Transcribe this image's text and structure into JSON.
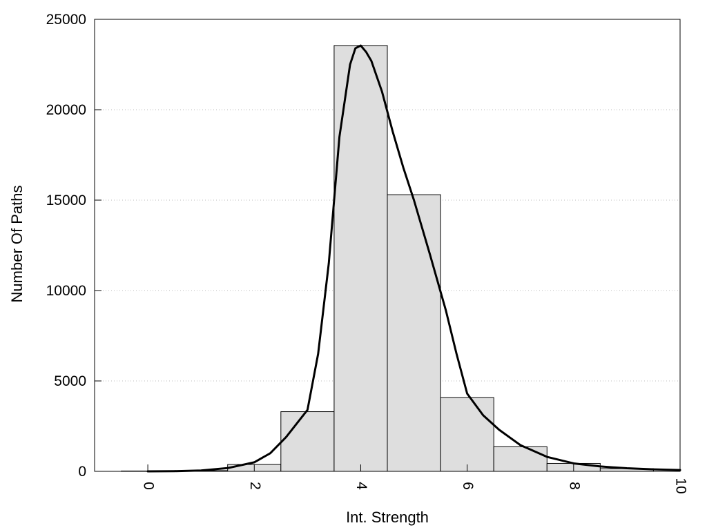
{
  "chart_data": {
    "type": "bar",
    "title": "",
    "xlabel": "Int. Strength",
    "ylabel": "Number Of Paths",
    "xlim": [
      -1,
      10
    ],
    "ylim": [
      0,
      25000
    ],
    "x_ticks": [
      0,
      2,
      4,
      6,
      8,
      10
    ],
    "y_ticks": [
      0,
      5000,
      10000,
      15000,
      20000,
      25000
    ],
    "grid": "horizontal-dotted",
    "bar_width": 1,
    "bars": {
      "name": "",
      "color": "#dedede",
      "x": [
        0,
        1,
        2,
        3,
        4,
        5,
        6,
        7,
        8,
        9
      ],
      "values": [
        20,
        40,
        380,
        3300,
        23550,
        15300,
        4080,
        1360,
        440,
        150
      ]
    },
    "curve": {
      "name": "",
      "color": "#000000",
      "x": [
        0,
        0.5,
        1,
        1.5,
        2,
        2.3,
        2.6,
        3,
        3.2,
        3.4,
        3.6,
        3.8,
        3.9,
        4,
        4.1,
        4.2,
        4.4,
        4.6,
        4.8,
        5,
        5.3,
        5.6,
        5.8,
        6,
        6.3,
        6.6,
        7,
        7.5,
        8,
        8.5,
        9,
        9.5,
        10
      ],
      "values": [
        0,
        10,
        50,
        180,
        500,
        1000,
        1900,
        3400,
        6500,
        11500,
        18500,
        22500,
        23400,
        23550,
        23200,
        22700,
        21000,
        18800,
        16800,
        15000,
        12000,
        8900,
        6500,
        4300,
        3100,
        2300,
        1450,
        800,
        440,
        270,
        170,
        110,
        70
      ]
    }
  }
}
